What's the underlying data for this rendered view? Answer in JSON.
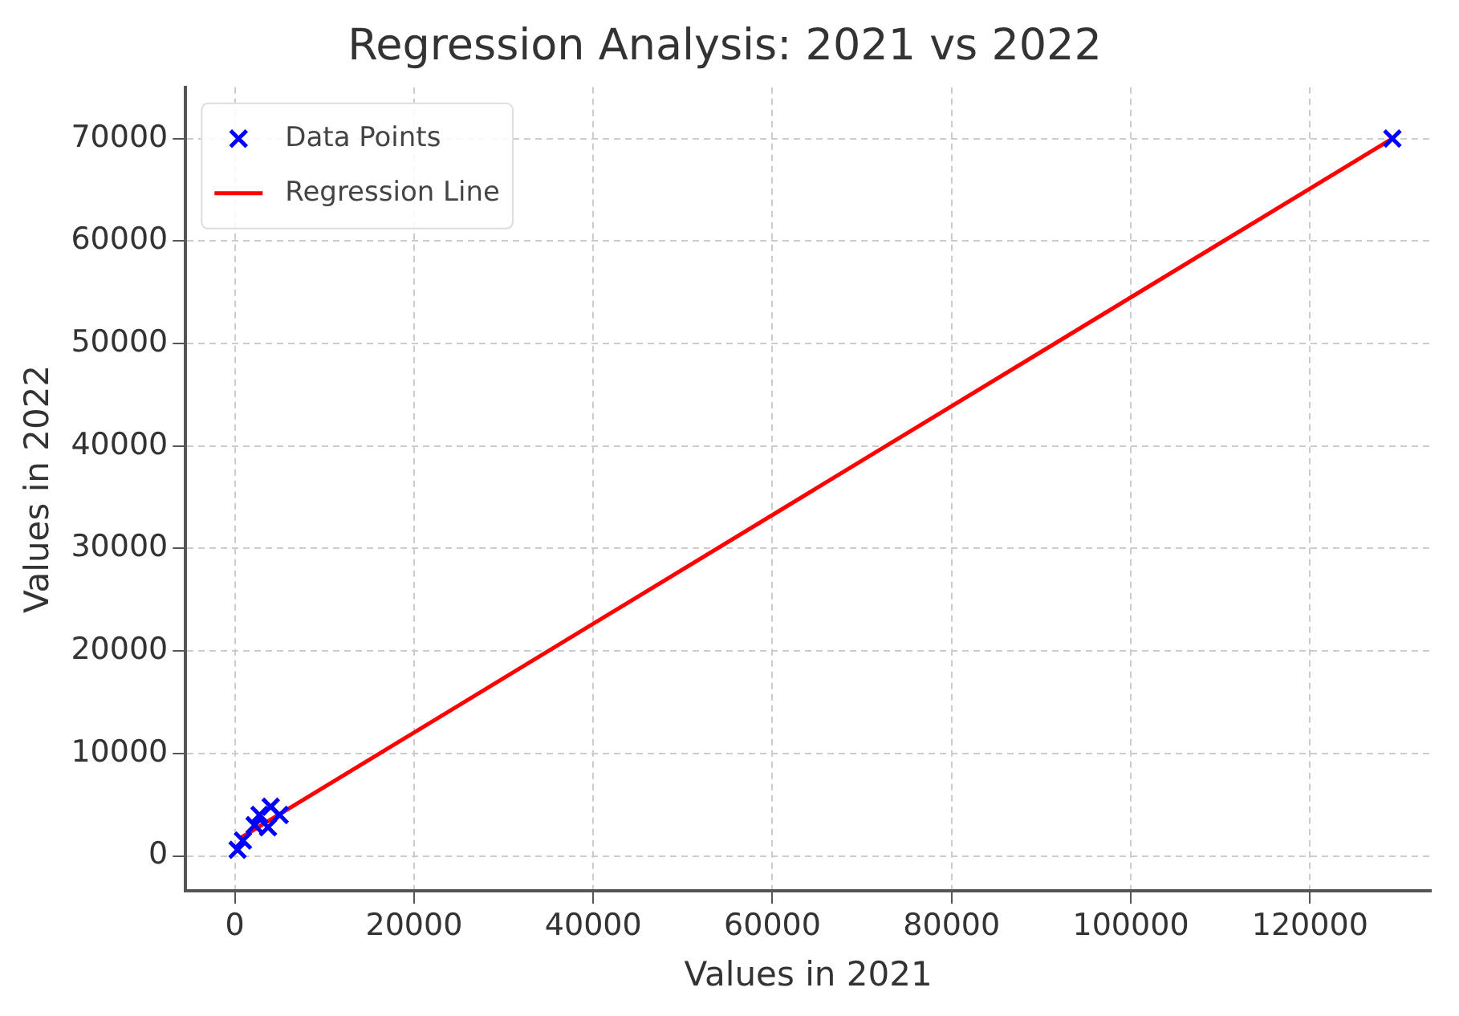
{
  "chart_data": {
    "type": "scatter",
    "title": "Regression Analysis: 2021 vs 2022",
    "xlabel": "Values in 2021",
    "ylabel": "Values in 2022",
    "xlim": [
      -5500,
      133500
    ],
    "ylim": [
      -3400,
      75000
    ],
    "xticks": [
      0,
      20000,
      40000,
      60000,
      80000,
      100000,
      120000
    ],
    "yticks": [
      0,
      10000,
      20000,
      30000,
      40000,
      50000,
      60000,
      70000
    ],
    "grid": true,
    "legend": "top left",
    "series": [
      {
        "name": "Data Points",
        "color": "#0000ff",
        "marker": "cross",
        "x": [
          300,
          900,
          2200,
          2750,
          3700,
          4000,
          5000,
          129200
        ],
        "values": [
          600,
          1500,
          3000,
          4000,
          2800,
          4800,
          4000,
          70000
        ]
      },
      {
        "name": "Regression Line",
        "type": "line",
        "color": "#ff0000",
        "marker": "none",
        "line_style": "solid",
        "x": [
          700,
          129200
        ],
        "values": [
          1800,
          70000
        ]
      }
    ]
  }
}
